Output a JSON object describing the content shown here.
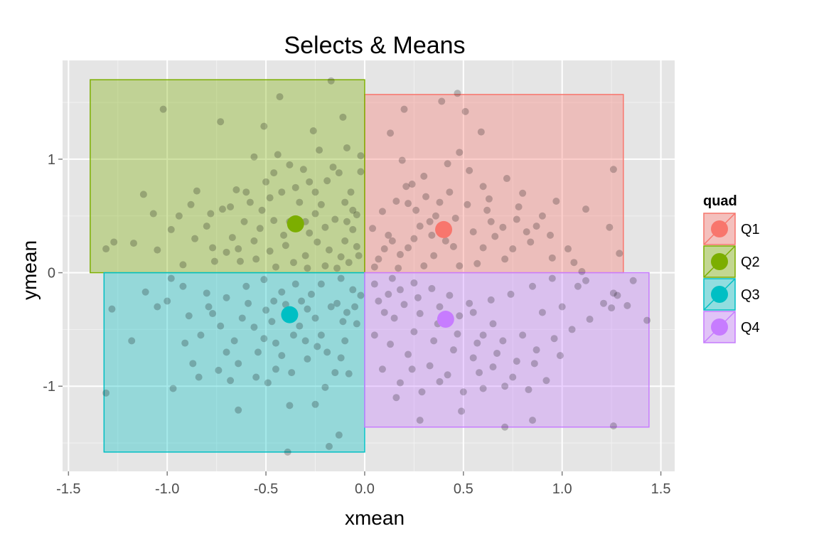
{
  "chart_data": {
    "type": "scatter",
    "title": "Selects & Means",
    "xlabel": "xmean",
    "ylabel": "ymean",
    "xlim": [
      -1.53,
      1.57
    ],
    "ylim": [
      -1.75,
      1.87
    ],
    "x_ticks": [
      {
        "value": -1.5,
        "label": "-1.5"
      },
      {
        "value": -1.0,
        "label": "-1.0"
      },
      {
        "value": -0.5,
        "label": "-0.5"
      },
      {
        "value": 0.0,
        "label": "0.0"
      },
      {
        "value": 0.5,
        "label": "0.5"
      },
      {
        "value": 1.0,
        "label": "1.0"
      },
      {
        "value": 1.5,
        "label": "1.5"
      }
    ],
    "y_ticks": [
      {
        "value": -1,
        "label": "-1"
      },
      {
        "value": 0,
        "label": "0"
      },
      {
        "value": 1,
        "label": "1"
      }
    ],
    "grid": true,
    "background": "#e5e5e5",
    "legend": {
      "title": "quad",
      "position": "right",
      "entries": [
        {
          "label": "Q1",
          "color": "#F8766D"
        },
        {
          "label": "Q2",
          "color": "#7CAE00"
        },
        {
          "label": "Q3",
          "color": "#00BFC4"
        },
        {
          "label": "Q4",
          "color": "#C77CFF"
        }
      ]
    },
    "rectangles": [
      {
        "quad": "Q1",
        "xmin": 0.0,
        "xmax": 1.31,
        "ymin": 0.0,
        "ymax": 1.57,
        "color": "#F8766D"
      },
      {
        "quad": "Q2",
        "xmin": -1.39,
        "xmax": 0.0,
        "ymin": 0.0,
        "ymax": 1.7,
        "color": "#7CAE00"
      },
      {
        "quad": "Q3",
        "xmin": -1.32,
        "xmax": 0.0,
        "ymin": -1.58,
        "ymax": 0.0,
        "color": "#00BFC4"
      },
      {
        "quad": "Q4",
        "xmin": 0.0,
        "xmax": 1.44,
        "ymin": -1.36,
        "ymax": 0.0,
        "color": "#C77CFF"
      }
    ],
    "means": [
      {
        "quad": "Q1",
        "x": 0.4,
        "y": 0.38,
        "color": "#F8766D"
      },
      {
        "quad": "Q2",
        "x": -0.35,
        "y": 0.43,
        "color": "#7CAE00"
      },
      {
        "quad": "Q3",
        "x": -0.38,
        "y": -0.37,
        "color": "#00BFC4"
      },
      {
        "quad": "Q4",
        "x": 0.41,
        "y": -0.41,
        "color": "#C77CFF"
      }
    ],
    "points": [
      [
        -0.17,
        1.69
      ],
      [
        -0.43,
        1.55
      ],
      [
        -0.51,
        1.29
      ],
      [
        -0.73,
        1.33
      ],
      [
        -1.02,
        1.44
      ],
      [
        -0.11,
        1.37
      ],
      [
        -0.02,
        1.03
      ],
      [
        -0.23,
        1.08
      ],
      [
        -0.56,
        1.02
      ],
      [
        -0.38,
        0.95
      ],
      [
        -0.46,
        0.88
      ],
      [
        -0.28,
        0.8
      ],
      [
        -0.13,
        0.88
      ],
      [
        -0.07,
        0.71
      ],
      [
        -0.85,
        0.72
      ],
      [
        -0.65,
        0.73
      ],
      [
        -0.58,
        0.62
      ],
      [
        -0.72,
        0.56
      ],
      [
        -0.94,
        0.5
      ],
      [
        -1.07,
        0.52
      ],
      [
        -1.17,
        0.26
      ],
      [
        -1.27,
        0.27
      ],
      [
        -1.31,
        0.21
      ],
      [
        -1.05,
        0.2
      ],
      [
        -0.92,
        0.07
      ],
      [
        -0.77,
        0.22
      ],
      [
        -0.63,
        0.1
      ],
      [
        -0.48,
        0.19
      ],
      [
        -0.4,
        0.24
      ],
      [
        -0.3,
        0.15
      ],
      [
        -0.18,
        0.2
      ],
      [
        -0.1,
        0.28
      ],
      [
        -0.06,
        0.38
      ],
      [
        -0.15,
        0.47
      ],
      [
        -0.25,
        0.52
      ],
      [
        -0.33,
        0.62
      ],
      [
        -0.41,
        0.33
      ],
      [
        -0.53,
        0.39
      ],
      [
        -0.61,
        0.45
      ],
      [
        -0.67,
        0.31
      ],
      [
        -0.8,
        0.41
      ],
      [
        -0.52,
        0.55
      ],
      [
        -0.35,
        0.75
      ],
      [
        -0.22,
        0.6
      ],
      [
        -0.04,
        0.51
      ],
      [
        -0.12,
        0.14
      ],
      [
        -0.2,
        0.06
      ],
      [
        -0.29,
        0.04
      ],
      [
        -0.45,
        0.05
      ],
      [
        -0.55,
        0.12
      ],
      [
        -0.7,
        0.18
      ],
      [
        -0.86,
        0.3
      ],
      [
        -0.98,
        0.38
      ],
      [
        -0.6,
        0.71
      ],
      [
        -0.44,
        1.04
      ],
      [
        -0.26,
        1.25
      ],
      [
        -0.09,
        1.1
      ],
      [
        -0.02,
        0.89
      ],
      [
        -0.16,
        0.93
      ],
      [
        -0.31,
        0.91
      ],
      [
        -0.48,
        0.66
      ],
      [
        -0.38,
        0.45
      ],
      [
        -0.28,
        0.35
      ],
      [
        -0.09,
        0.45
      ],
      [
        -0.04,
        0.23
      ],
      [
        -0.24,
        0.27
      ],
      [
        -0.36,
        0.09
      ],
      [
        -0.68,
        0.58
      ],
      [
        -0.78,
        0.52
      ],
      [
        -0.88,
        0.6
      ],
      [
        -1.12,
        0.69
      ],
      [
        -0.14,
        0.04
      ],
      [
        -0.08,
        0.09
      ],
      [
        -0.03,
        0.15
      ],
      [
        -0.2,
        0.4
      ],
      [
        -0.3,
        0.45
      ],
      [
        -0.46,
        0.46
      ],
      [
        -0.56,
        0.28
      ],
      [
        -0.64,
        0.21
      ],
      [
        -0.76,
        0.1
      ],
      [
        -0.5,
        0.8
      ],
      [
        -0.42,
        0.71
      ],
      [
        -0.25,
        0.71
      ],
      [
        -0.19,
        0.81
      ],
      [
        -0.1,
        0.62
      ],
      [
        -0.06,
        0.55
      ],
      [
        0.13,
        1.23
      ],
      [
        0.19,
        0.99
      ],
      [
        0.21,
        0.76
      ],
      [
        0.22,
        0.61
      ],
      [
        0.33,
        0.45
      ],
      [
        0.47,
        1.58
      ],
      [
        0.39,
        1.51
      ],
      [
        0.51,
        1.42
      ],
      [
        0.59,
        1.24
      ],
      [
        0.48,
        1.06
      ],
      [
        0.42,
        0.96
      ],
      [
        0.3,
        0.85
      ],
      [
        0.24,
        0.78
      ],
      [
        0.31,
        0.67
      ],
      [
        0.43,
        0.71
      ],
      [
        0.6,
        0.76
      ],
      [
        0.72,
        0.83
      ],
      [
        0.8,
        0.7
      ],
      [
        0.97,
        0.63
      ],
      [
        1.12,
        0.56
      ],
      [
        1.26,
        0.91
      ],
      [
        1.29,
        0.17
      ],
      [
        1.06,
        0.09
      ],
      [
        0.84,
        0.27
      ],
      [
        0.64,
        0.45
      ],
      [
        0.55,
        0.36
      ],
      [
        0.45,
        0.23
      ],
      [
        0.35,
        0.15
      ],
      [
        0.22,
        0.22
      ],
      [
        0.12,
        0.33
      ],
      [
        0.07,
        0.12
      ],
      [
        0.04,
        0.39
      ],
      [
        0.09,
        0.54
      ],
      [
        0.16,
        0.63
      ],
      [
        0.26,
        0.55
      ],
      [
        0.36,
        0.5
      ],
      [
        0.52,
        0.6
      ],
      [
        0.62,
        0.55
      ],
      [
        0.77,
        0.47
      ],
      [
        0.87,
        0.41
      ],
      [
        0.94,
        0.33
      ],
      [
        1.03,
        0.21
      ],
      [
        0.71,
        0.12
      ],
      [
        0.57,
        0.08
      ],
      [
        0.48,
        0.06
      ],
      [
        0.3,
        0.06
      ],
      [
        0.17,
        0.04
      ],
      [
        0.05,
        0.05
      ],
      [
        0.25,
        0.3
      ],
      [
        0.18,
        0.16
      ],
      [
        0.66,
        0.32
      ],
      [
        0.75,
        0.21
      ],
      [
        0.9,
        0.5
      ],
      [
        1.1,
        0.01
      ],
      [
        0.53,
        0.9
      ],
      [
        0.7,
        0.4
      ],
      [
        0.82,
        0.36
      ],
      [
        0.34,
        0.33
      ],
      [
        0.41,
        0.28
      ],
      [
        0.28,
        0.41
      ],
      [
        0.14,
        0.28
      ],
      [
        0.1,
        0.21
      ],
      [
        0.6,
        0.22
      ],
      [
        0.95,
        0.13
      ],
      [
        1.24,
        0.4
      ],
      [
        0.2,
        1.44
      ],
      [
        0.38,
        0.62
      ],
      [
        0.46,
        0.48
      ],
      [
        0.63,
        0.65
      ],
      [
        0.78,
        0.58
      ],
      [
        -1.28,
        -0.32
      ],
      [
        -1.11,
        -0.17
      ],
      [
        -0.98,
        -0.05
      ],
      [
        -1.05,
        -0.3
      ],
      [
        -1.18,
        -0.6
      ],
      [
        -1.31,
        -1.06
      ],
      [
        -0.97,
        -1.02
      ],
      [
        -0.89,
        -0.38
      ],
      [
        -0.79,
        -0.3
      ],
      [
        -0.7,
        -0.22
      ],
      [
        -0.6,
        -0.12
      ],
      [
        -0.51,
        -0.06
      ],
      [
        -0.42,
        -0.17
      ],
      [
        -0.32,
        -0.25
      ],
      [
        -0.22,
        -0.1
      ],
      [
        -0.12,
        -0.05
      ],
      [
        -0.06,
        -0.15
      ],
      [
        -0.14,
        -0.27
      ],
      [
        -0.25,
        -0.4
      ],
      [
        -0.36,
        -0.55
      ],
      [
        -0.45,
        -0.62
      ],
      [
        -0.54,
        -0.7
      ],
      [
        -0.64,
        -0.8
      ],
      [
        -0.74,
        -0.86
      ],
      [
        -0.84,
        -0.92
      ],
      [
        -0.55,
        -0.92
      ],
      [
        -0.45,
        -0.85
      ],
      [
        -0.37,
        -0.88
      ],
      [
        -0.29,
        -0.76
      ],
      [
        -0.19,
        -0.7
      ],
      [
        -0.1,
        -0.6
      ],
      [
        -0.04,
        -0.45
      ],
      [
        -0.09,
        -0.35
      ],
      [
        -0.17,
        -0.3
      ],
      [
        -0.29,
        -0.32
      ],
      [
        -0.4,
        -0.28
      ],
      [
        -0.5,
        -0.33
      ],
      [
        -0.62,
        -0.4
      ],
      [
        -0.73,
        -0.47
      ],
      [
        -0.83,
        -0.55
      ],
      [
        -0.91,
        -0.62
      ],
      [
        -0.66,
        -0.6
      ],
      [
        -0.56,
        -0.48
      ],
      [
        -0.47,
        -0.43
      ],
      [
        -0.33,
        -0.47
      ],
      [
        -0.22,
        -0.55
      ],
      [
        -0.12,
        -0.75
      ],
      [
        -0.08,
        -0.89
      ],
      [
        -0.2,
        -1.01
      ],
      [
        -0.38,
        -1.17
      ],
      [
        -0.13,
        -1.43
      ],
      [
        -0.18,
        -1.53
      ],
      [
        -0.39,
        -1.58
      ],
      [
        -0.64,
        -1.21
      ],
      [
        -0.25,
        -1.16
      ],
      [
        -0.49,
        -0.97
      ],
      [
        -0.7,
        -0.7
      ],
      [
        -0.8,
        -0.18
      ],
      [
        -0.92,
        -0.12
      ],
      [
        -1.0,
        -0.25
      ],
      [
        -0.3,
        -0.6
      ],
      [
        -0.42,
        -0.73
      ],
      [
        -0.15,
        -0.88
      ],
      [
        -0.05,
        -0.3
      ],
      [
        -0.27,
        -0.19
      ],
      [
        -0.59,
        -0.27
      ],
      [
        -0.77,
        -0.36
      ],
      [
        -0.35,
        -0.1
      ],
      [
        -0.11,
        -0.43
      ],
      [
        -0.02,
        -0.2
      ],
      [
        -0.24,
        -0.65
      ],
      [
        -0.46,
        -0.25
      ],
      [
        -0.87,
        -0.8
      ],
      [
        -0.68,
        -0.95
      ],
      [
        -0.51,
        -0.58
      ],
      [
        0.05,
        -0.1
      ],
      [
        0.12,
        -0.19
      ],
      [
        0.2,
        -0.28
      ],
      [
        0.28,
        -0.36
      ],
      [
        0.37,
        -0.45
      ],
      [
        0.47,
        -0.54
      ],
      [
        0.57,
        -0.62
      ],
      [
        0.67,
        -0.71
      ],
      [
        0.77,
        -0.78
      ],
      [
        0.87,
        -0.68
      ],
      [
        0.96,
        -0.58
      ],
      [
        1.05,
        -0.5
      ],
      [
        1.14,
        -0.41
      ],
      [
        1.21,
        -0.27
      ],
      [
        1.28,
        -0.2
      ],
      [
        1.26,
        -0.18
      ],
      [
        1.25,
        -0.31
      ],
      [
        1.33,
        -0.29
      ],
      [
        1.43,
        -0.42
      ],
      [
        1.36,
        -0.07
      ],
      [
        1.12,
        -0.07
      ],
      [
        0.95,
        -0.05
      ],
      [
        0.85,
        -0.12
      ],
      [
        0.74,
        -0.19
      ],
      [
        0.64,
        -0.24
      ],
      [
        0.53,
        -0.27
      ],
      [
        0.43,
        -0.2
      ],
      [
        0.34,
        -0.14
      ],
      [
        0.25,
        -0.09
      ],
      [
        0.14,
        -0.05
      ],
      [
        0.07,
        -0.25
      ],
      [
        0.15,
        -0.4
      ],
      [
        0.25,
        -0.52
      ],
      [
        0.35,
        -0.6
      ],
      [
        0.45,
        -0.68
      ],
      [
        0.55,
        -0.75
      ],
      [
        0.65,
        -0.83
      ],
      [
        0.75,
        -0.92
      ],
      [
        0.86,
        -0.8
      ],
      [
        0.99,
        -0.73
      ],
      [
        0.42,
        -0.9
      ],
      [
        0.33,
        -0.82
      ],
      [
        0.22,
        -0.72
      ],
      [
        0.13,
        -0.63
      ],
      [
        0.05,
        -0.55
      ],
      [
        0.09,
        -0.85
      ],
      [
        0.18,
        -0.97
      ],
      [
        0.29,
        -1.05
      ],
      [
        0.38,
        -0.96
      ],
      [
        0.5,
        -1.05
      ],
      [
        0.6,
        -1.02
      ],
      [
        0.71,
        -1.0
      ],
      [
        0.83,
        -1.03
      ],
      [
        0.28,
        -1.3
      ],
      [
        0.49,
        -1.22
      ],
      [
        0.71,
        -1.36
      ],
      [
        0.85,
        -1.3
      ],
      [
        1.26,
        -1.35
      ],
      [
        0.16,
        -1.1
      ],
      [
        0.55,
        -0.35
      ],
      [
        0.65,
        -0.45
      ],
      [
        0.8,
        -0.55
      ],
      [
        0.9,
        -0.35
      ],
      [
        1.0,
        -0.3
      ],
      [
        0.38,
        -0.3
      ],
      [
        0.48,
        -0.38
      ],
      [
        0.18,
        -0.15
      ],
      [
        0.27,
        -0.22
      ],
      [
        0.1,
        -0.35
      ],
      [
        0.6,
        -0.55
      ],
      [
        0.7,
        -0.6
      ],
      [
        0.92,
        -0.95
      ],
      [
        0.24,
        -0.85
      ],
      [
        0.58,
        -0.88
      ],
      [
        1.08,
        -0.12
      ]
    ]
  }
}
